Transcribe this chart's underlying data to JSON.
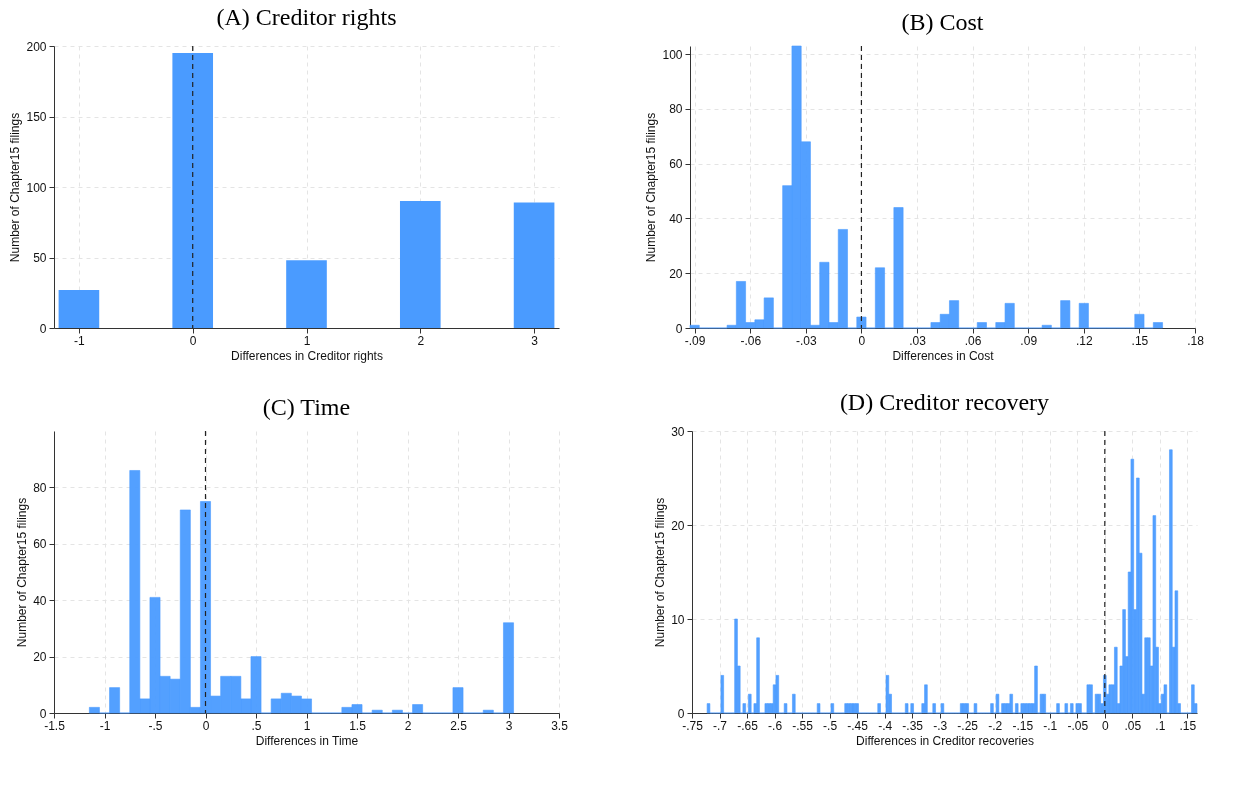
{
  "chart_data": [
    {
      "type": "bar",
      "title": "(A) Creditor rights",
      "xlabel": "Differences in Creditor rights",
      "ylabel": "Number of Chapter15 filings",
      "x": [
        -1,
        0,
        1,
        2,
        3
      ],
      "values": [
        27,
        195,
        48,
        90,
        89
      ],
      "color": "#4a9bff",
      "xlim": [
        -1.175,
        3.175
      ],
      "xticks": [
        -1,
        0,
        1,
        2,
        3
      ],
      "ylim": [
        0,
        200
      ],
      "yticks": [
        0,
        50,
        100,
        150,
        200
      ],
      "grid": true,
      "ref_lines": [
        {
          "axis": "x",
          "value": 0,
          "line_style": "dashed"
        }
      ]
    },
    {
      "type": "histogram",
      "title": "(B) Cost",
      "xlabel": "Differences in Cost",
      "ylabel": "Number of Chapter15 filings",
      "color": "#4a9bff",
      "bins": [
        -0.0925,
        -0.0875,
        -0.0825,
        -0.0775,
        -0.0725,
        -0.0675,
        -0.0625,
        -0.0575,
        -0.0525,
        -0.0475,
        -0.0425,
        -0.0375,
        -0.0325,
        -0.0275,
        -0.0225,
        -0.0175,
        -0.0125,
        -0.0075,
        -0.0025,
        0.0025,
        0.0075,
        0.0125,
        0.0175,
        0.0225,
        0.0275,
        0.0325,
        0.0375,
        0.0425,
        0.0475,
        0.0525,
        0.0575,
        0.0625,
        0.0675,
        0.0725,
        0.0775,
        0.0825,
        0.0875,
        0.0925,
        0.0975,
        0.1025,
        0.1075,
        0.1125,
        0.1175,
        0.1225,
        0.1275,
        0.1325,
        0.1375,
        0.1425,
        0.1475,
        0.1525,
        0.1575,
        0.1625
      ],
      "values": [
        1,
        0,
        0,
        0,
        1,
        17,
        2,
        3,
        11,
        0,
        52,
        103,
        68,
        1,
        24,
        2,
        36,
        0,
        4,
        0,
        22,
        0,
        44,
        0,
        0,
        0,
        2,
        5,
        10,
        0,
        0,
        2,
        0,
        2,
        9,
        0,
        0,
        0,
        1,
        0,
        10,
        0,
        9,
        0,
        0,
        0,
        0,
        0,
        5,
        0,
        2
      ],
      "xlim": [
        -0.0925,
        0.18
      ],
      "xticks": [
        {
          "value": -0.09,
          "label": "-.09"
        },
        {
          "value": -0.06,
          "label": "-.06"
        },
        {
          "value": -0.03,
          "label": "-.03"
        },
        0,
        {
          "value": 0.03,
          "label": ".03"
        },
        {
          "value": 0.06,
          "label": ".06"
        },
        {
          "value": 0.09,
          "label": ".09"
        },
        {
          "value": 0.12,
          "label": ".12"
        },
        {
          "value": 0.15,
          "label": ".15"
        },
        {
          "value": 0.18,
          "label": ".18"
        }
      ],
      "ylim": [
        0,
        103
      ],
      "yticks": [
        0,
        20,
        40,
        60,
        80,
        100
      ],
      "grid": true,
      "ref_lines": [
        {
          "axis": "x",
          "value": 0,
          "line_style": "dashed"
        }
      ]
    },
    {
      "type": "histogram",
      "title": "(C) Time",
      "xlabel": "Differences in Time",
      "ylabel": "Number of Chapter15 filings",
      "color": "#4a9bff",
      "bins": [
        -1.15,
        -1.05,
        -0.95,
        -0.85,
        -0.75,
        -0.65,
        -0.55,
        -0.45,
        -0.35,
        -0.25,
        -0.15,
        -0.05,
        0.05,
        0.15,
        0.25,
        0.35,
        0.45,
        0.55,
        0.65,
        0.75,
        0.85,
        0.95,
        1.05,
        1.15,
        1.25,
        1.35,
        1.45,
        1.55,
        1.65,
        1.75,
        1.85,
        1.95,
        2.05,
        2.15,
        2.25,
        2.35,
        2.45,
        2.55,
        2.65,
        2.75,
        2.85,
        2.95,
        3.05
      ],
      "values": [
        2,
        0,
        9,
        0,
        86,
        5,
        41,
        13,
        12,
        72,
        2,
        75,
        6,
        13,
        13,
        5,
        20,
        0,
        5,
        7,
        6,
        5,
        0,
        0,
        0,
        2,
        3,
        0,
        1,
        0,
        1,
        0,
        3,
        0,
        0,
        0,
        9,
        0,
        0,
        1,
        0,
        32
      ],
      "xlim": [
        -1.5,
        3.5
      ],
      "xticks": [
        -1.5,
        -1,
        {
          "value": -0.5,
          "label": "-.5"
        },
        0,
        {
          "value": 0.5,
          "label": ".5"
        },
        1,
        1.5,
        2,
        2.5,
        3,
        3.5
      ],
      "ylim": [
        0,
        100
      ],
      "yticks": [
        0,
        20,
        40,
        60,
        80
      ],
      "grid": true,
      "ref_lines": [
        {
          "axis": "x",
          "value": 0,
          "line_style": "dashed"
        }
      ]
    },
    {
      "type": "histogram",
      "title": "(D) Creditor recovery",
      "xlabel": "Differences in Creditor  recoveries",
      "ylabel": "Number of Chapter15 filings",
      "color": "#4a9bff",
      "bins": [
        -0.7225,
        -0.7175,
        -0.7125,
        -0.7075,
        -0.7025,
        -0.6975,
        -0.6925,
        -0.6875,
        -0.6825,
        -0.6775,
        -0.6725,
        -0.6675,
        -0.6625,
        -0.6575,
        -0.6525,
        -0.6475,
        -0.6425,
        -0.6375,
        -0.6325,
        -0.6275,
        -0.6225,
        -0.6175,
        -0.6125,
        -0.6075,
        -0.6025,
        -0.5975,
        -0.5925,
        -0.5875,
        -0.5825,
        -0.5775,
        -0.5725,
        -0.5675,
        -0.5625,
        -0.5575,
        -0.5525,
        -0.5475,
        -0.5425,
        -0.5375,
        -0.5325,
        -0.5275,
        -0.5225,
        -0.5175,
        -0.5125,
        -0.5075,
        -0.5025,
        -0.4975,
        -0.4925,
        -0.4875,
        -0.4825,
        -0.4775,
        -0.4725,
        -0.4675,
        -0.4625,
        -0.4575,
        -0.4525,
        -0.4475,
        -0.4425,
        -0.4375,
        -0.4325,
        -0.4275,
        -0.4225,
        -0.4175,
        -0.4125,
        -0.4075,
        -0.4025,
        -0.3975,
        -0.3925,
        -0.3875,
        -0.3825,
        -0.3775,
        -0.3725,
        -0.3675,
        -0.3625,
        -0.3575,
        -0.3525,
        -0.3475,
        -0.3425,
        -0.3375,
        -0.3325,
        -0.3275,
        -0.3225,
        -0.3175,
        -0.3125,
        -0.3075,
        -0.3025,
        -0.2975,
        -0.2925,
        -0.2875,
        -0.2825,
        -0.2775,
        -0.2725,
        -0.2675,
        -0.2625,
        -0.2575,
        -0.2525,
        -0.2475,
        -0.2425,
        -0.2375,
        -0.2325,
        -0.2275,
        -0.2225,
        -0.2175,
        -0.2125,
        -0.2075,
        -0.2025,
        -0.1975,
        -0.1925,
        -0.1875,
        -0.1825,
        -0.1775,
        -0.1725,
        -0.1675,
        -0.1625,
        -0.1575,
        -0.1525,
        -0.1475,
        -0.1425,
        -0.1375,
        -0.1325,
        -0.1275,
        -0.1225,
        -0.1175,
        -0.1125,
        -0.1075,
        -0.1025,
        -0.0975,
        -0.0925,
        -0.0875,
        -0.0825,
        -0.0775,
        -0.0725,
        -0.0675,
        -0.0625,
        -0.0575,
        -0.0525,
        -0.0475,
        -0.0425,
        -0.0375,
        -0.0325,
        -0.0275,
        -0.0225,
        -0.0175,
        -0.0125,
        -0.0075,
        -0.0025,
        0.0025,
        0.0075,
        0.0125,
        0.0175,
        0.0225,
        0.0275,
        0.0325,
        0.0375,
        0.0425,
        0.0475,
        0.0525,
        0.0575,
        0.0625,
        0.0675,
        0.0725,
        0.0775,
        0.0825,
        0.0875,
        0.0925,
        0.0975,
        0.1025,
        0.1075,
        0.1125,
        0.1175,
        0.1225,
        0.1275,
        0.1325,
        0.1375,
        0.1425,
        0.1475,
        0.1525,
        0.1575,
        0.1625,
        0.1675
      ],
      "values": [
        1,
        0,
        0,
        0,
        0,
        4,
        0,
        0,
        0,
        0,
        10,
        5,
        0,
        1,
        0,
        2,
        0,
        1,
        8,
        0,
        0,
        1,
        1,
        1,
        3,
        4,
        0,
        0,
        1,
        0,
        0,
        2,
        0,
        0,
        0,
        0,
        0,
        0,
        0,
        0,
        1,
        0,
        0,
        0,
        0,
        1,
        0,
        0,
        0,
        0,
        1,
        1,
        1,
        1,
        1,
        0,
        0,
        0,
        0,
        0,
        0,
        0,
        1,
        0,
        0,
        4,
        2,
        0,
        0,
        0,
        0,
        0,
        1,
        0,
        1,
        0,
        0,
        0,
        1,
        3,
        0,
        0,
        1,
        0,
        0,
        1,
        0,
        0,
        0,
        0,
        0,
        0,
        1,
        1,
        1,
        0,
        0,
        1,
        0,
        0,
        0,
        0,
        0,
        1,
        0,
        2,
        0,
        1,
        1,
        1,
        2,
        0,
        1,
        0,
        1,
        1,
        1,
        1,
        1,
        5,
        0,
        2,
        2,
        0,
        0,
        0,
        0,
        1,
        0,
        0,
        1,
        0,
        1,
        0,
        1,
        1,
        0,
        0,
        3,
        3,
        0,
        2,
        2,
        1,
        4,
        2,
        3,
        3,
        7,
        1,
        5,
        11,
        6,
        15,
        27,
        11,
        25,
        17,
        2,
        8,
        8,
        5,
        21,
        7,
        1,
        2,
        3,
        0,
        28,
        7,
        13,
        1,
        0,
        0,
        0,
        0,
        3,
        1
      ],
      "xlim": [
        -0.75,
        0.1675
      ],
      "xticks": [
        {
          "value": -0.75,
          "label": "-.75"
        },
        {
          "value": -0.7,
          "label": "-.7"
        },
        {
          "value": -0.65,
          "label": "-.65"
        },
        {
          "value": -0.6,
          "label": "-.6"
        },
        {
          "value": -0.55,
          "label": "-.55"
        },
        {
          "value": -0.5,
          "label": "-.5"
        },
        {
          "value": -0.45,
          "label": "-.45"
        },
        {
          "value": -0.4,
          "label": "-.4"
        },
        {
          "value": -0.35,
          "label": "-.35"
        },
        {
          "value": -0.3,
          "label": "-.3"
        },
        {
          "value": -0.25,
          "label": "-.25"
        },
        {
          "value": -0.2,
          "label": "-.2"
        },
        {
          "value": -0.15,
          "label": "-.15"
        },
        {
          "value": -0.1,
          "label": "-.1"
        },
        {
          "value": -0.05,
          "label": "-.05"
        },
        0,
        {
          "value": 0.05,
          "label": ".05"
        },
        {
          "value": 0.1,
          "label": ".1"
        },
        {
          "value": 0.15,
          "label": ".15"
        }
      ],
      "ylim": [
        0,
        30
      ],
      "yticks": [
        0,
        10,
        20,
        30
      ],
      "grid": true,
      "ref_lines": [
        {
          "axis": "x",
          "value": 0,
          "line_style": "dashed"
        }
      ]
    }
  ]
}
